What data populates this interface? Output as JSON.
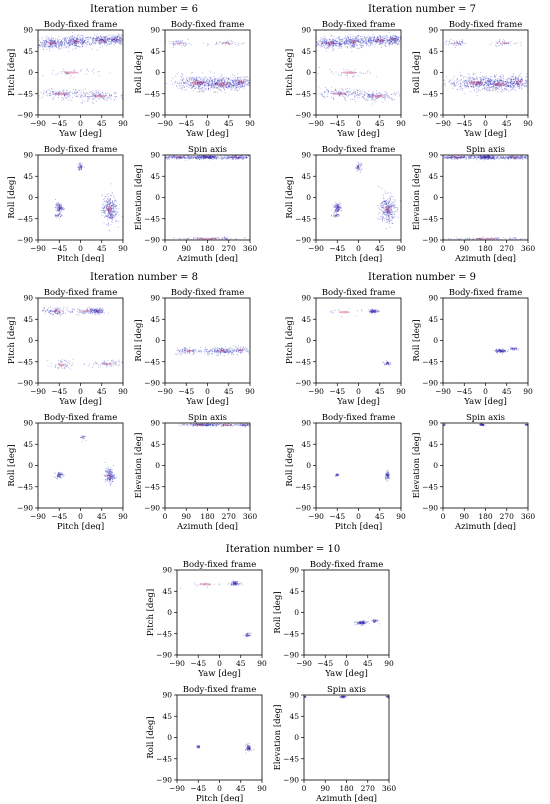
{
  "colors": {
    "scatter": "#1f1fb4",
    "density": "#c0184f",
    "axes": "#000000",
    "background": "#ffffff"
  },
  "iterations": [
    {
      "title": "Iteration number = 6",
      "profile": "a"
    },
    {
      "title": "Iteration number = 7",
      "profile": "a"
    },
    {
      "title": "Iteration number = 8",
      "profile": "b"
    },
    {
      "title": "Iteration number = 9",
      "profile": "c"
    },
    {
      "title": "Iteration number = 10",
      "profile": "c"
    }
  ],
  "chart_data": [
    {
      "type": "scatter",
      "panel": "yaw-pitch",
      "title": "Body-fixed frame",
      "xlabel": "Yaw [deg]",
      "ylabel": "Pitch [deg]",
      "xlim": [
        -90,
        90
      ],
      "ylim": [
        -90,
        90
      ],
      "xticks": [
        -90,
        -45,
        0,
        45,
        90
      ],
      "yticks": [
        90,
        45,
        0,
        -45,
        -90
      ],
      "clusters": {
        "a": [
          {
            "x": -60,
            "y": 62,
            "sx": 18,
            "sy": 6,
            "n": 260
          },
          {
            "x": -10,
            "y": 65,
            "sx": 15,
            "sy": 6,
            "n": 240
          },
          {
            "x": 45,
            "y": 68,
            "sx": 18,
            "sy": 5,
            "n": 240
          },
          {
            "x": 75,
            "y": 70,
            "sx": 8,
            "sy": 5,
            "n": 120
          },
          {
            "x": -40,
            "y": -45,
            "sx": 30,
            "sy": 5,
            "n": 140
          },
          {
            "x": 40,
            "y": -50,
            "sx": 28,
            "sy": 5,
            "n": 150
          },
          {
            "x": -20,
            "y": 0,
            "sx": 30,
            "sy": 5,
            "n": 40
          }
        ],
        "b": [
          {
            "x": -50,
            "y": 62,
            "sx": 18,
            "sy": 4,
            "n": 110
          },
          {
            "x": 35,
            "y": 62,
            "sx": 8,
            "sy": 3,
            "n": 120
          },
          {
            "x": 10,
            "y": 62,
            "sx": 15,
            "sy": 4,
            "n": 60
          },
          {
            "x": 55,
            "y": -50,
            "sx": 20,
            "sy": 4,
            "n": 70
          },
          {
            "x": -40,
            "y": -52,
            "sx": 12,
            "sy": 6,
            "n": 50
          }
        ],
        "c": [
          {
            "x": 32,
            "y": 62,
            "sx": 5,
            "sy": 2,
            "n": 90
          },
          {
            "x": 60,
            "y": -48,
            "sx": 3,
            "sy": 2,
            "n": 40
          },
          {
            "x": -30,
            "y": 60,
            "sx": 25,
            "sy": 5,
            "n": 15
          }
        ]
      }
    },
    {
      "type": "scatter",
      "panel": "yaw-roll",
      "title": "Body-fixed frame",
      "xlabel": "Yaw [deg]",
      "ylabel": "Roll [deg]",
      "xlim": [
        -90,
        90
      ],
      "ylim": [
        -90,
        90
      ],
      "xticks": [
        -90,
        -45,
        0,
        45,
        90
      ],
      "yticks": [
        90,
        45,
        0,
        -45,
        -90
      ],
      "clusters": {
        "a": [
          {
            "x": -20,
            "y": -22,
            "sx": 30,
            "sy": 8,
            "n": 320
          },
          {
            "x": 30,
            "y": -25,
            "sx": 25,
            "sy": 7,
            "n": 320
          },
          {
            "x": 70,
            "y": -20,
            "sx": 12,
            "sy": 7,
            "n": 140
          },
          {
            "x": -60,
            "y": 62,
            "sx": 12,
            "sy": 3,
            "n": 50
          },
          {
            "x": 40,
            "y": 62,
            "sx": 20,
            "sy": 3,
            "n": 40
          }
        ],
        "b": [
          {
            "x": 30,
            "y": -22,
            "sx": 18,
            "sy": 4,
            "n": 180
          },
          {
            "x": -40,
            "y": -22,
            "sx": 15,
            "sy": 4,
            "n": 90
          },
          {
            "x": 70,
            "y": -20,
            "sx": 10,
            "sy": 4,
            "n": 60
          }
        ],
        "c": [
          {
            "x": 32,
            "y": -22,
            "sx": 6,
            "sy": 2,
            "n": 110
          },
          {
            "x": 60,
            "y": -18,
            "sx": 4,
            "sy": 2,
            "n": 40
          }
        ]
      }
    },
    {
      "type": "scatter",
      "panel": "pitch-roll",
      "title": "Body-fixed frame",
      "xlabel": "Pitch [deg]",
      "ylabel": "Roll [deg]",
      "xlim": [
        -90,
        90
      ],
      "ylim": [
        -90,
        90
      ],
      "xticks": [
        -90,
        -45,
        0,
        45,
        90
      ],
      "yticks": [
        90,
        45,
        0,
        -45,
        -90
      ],
      "clusters": {
        "a": [
          {
            "x": -45,
            "y": -22,
            "sx": 4,
            "sy": 5,
            "n": 110
          },
          {
            "x": 62,
            "y": -25,
            "sx": 8,
            "sy": 15,
            "n": 300
          },
          {
            "x": 0,
            "y": 65,
            "sx": 3,
            "sy": 4,
            "n": 50
          },
          {
            "x": -48,
            "y": -38,
            "sx": 4,
            "sy": 2,
            "n": 30
          }
        ],
        "b": [
          {
            "x": -45,
            "y": -20,
            "sx": 4,
            "sy": 3,
            "n": 70
          },
          {
            "x": 62,
            "y": -22,
            "sx": 5,
            "sy": 8,
            "n": 170
          },
          {
            "x": 5,
            "y": 60,
            "sx": 3,
            "sy": 3,
            "n": 20
          }
        ],
        "c": [
          {
            "x": -45,
            "y": -20,
            "sx": 2,
            "sy": 1.5,
            "n": 30
          },
          {
            "x": 62,
            "y": -22,
            "sx": 2.5,
            "sy": 4,
            "n": 80
          }
        ]
      }
    },
    {
      "type": "scatter",
      "panel": "azimuth-elevation",
      "title": "Spin axis",
      "xlabel": "Azimuth [deg]",
      "ylabel": "Elevation [deg]",
      "xlim": [
        0,
        360
      ],
      "ylim": [
        -90,
        90
      ],
      "xticks": [
        0,
        90,
        180,
        270,
        360
      ],
      "yticks": [
        90,
        45,
        0,
        -45,
        -90
      ],
      "clusters": {
        "a": [
          {
            "x": 60,
            "y": 85,
            "sx": 45,
            "sy": 2,
            "n": 180
          },
          {
            "x": 180,
            "y": 85,
            "sx": 25,
            "sy": 2,
            "n": 220
          },
          {
            "x": 300,
            "y": 85,
            "sx": 40,
            "sy": 2,
            "n": 180
          },
          {
            "x": 180,
            "y": -87,
            "sx": 90,
            "sy": 1.5,
            "n": 80
          }
        ],
        "b": [
          {
            "x": 150,
            "y": 86,
            "sx": 40,
            "sy": 1.5,
            "n": 150
          },
          {
            "x": 260,
            "y": 86,
            "sx": 40,
            "sy": 1.5,
            "n": 80
          },
          {
            "x": 340,
            "y": 86,
            "sx": 10,
            "sy": 1.5,
            "n": 40
          }
        ],
        "c": [
          {
            "x": 165,
            "y": 86,
            "sx": 6,
            "sy": 1,
            "n": 60
          },
          {
            "x": 355,
            "y": 86,
            "sx": 4,
            "sy": 1,
            "n": 25
          },
          {
            "x": 5,
            "y": 86,
            "sx": 3,
            "sy": 1,
            "n": 15
          }
        ]
      }
    }
  ]
}
